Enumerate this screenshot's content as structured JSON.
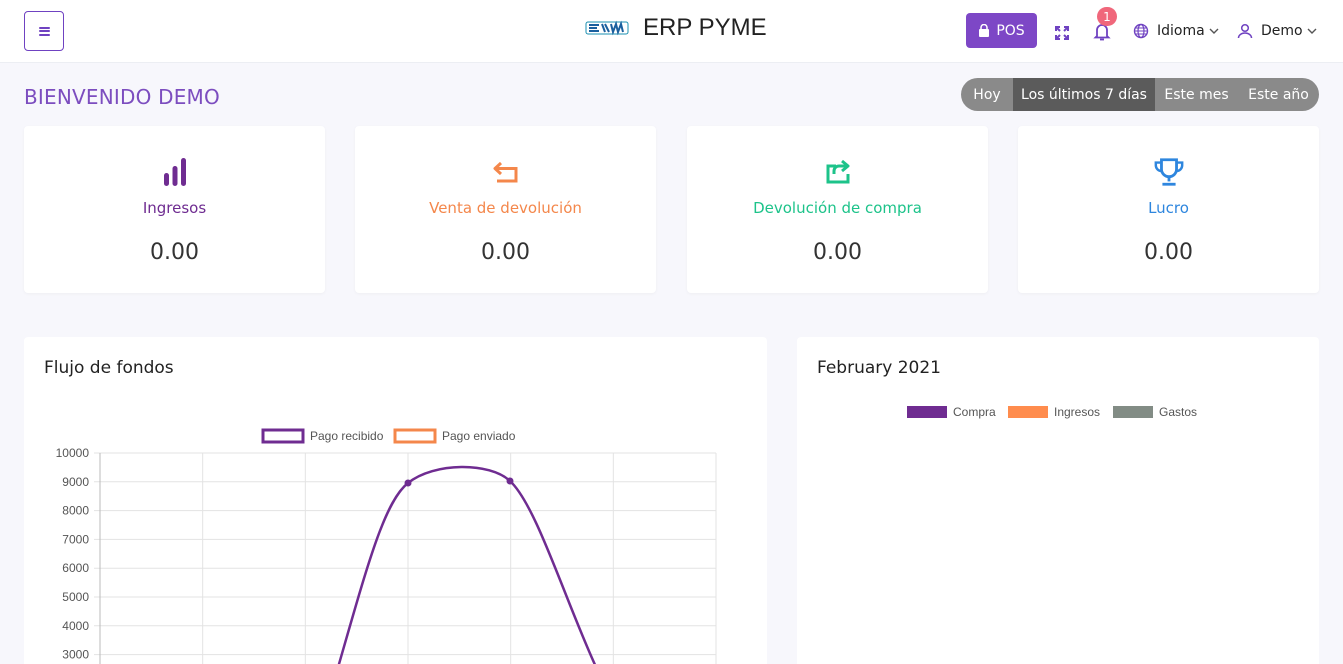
{
  "header": {
    "brand_title": "ERP PYME",
    "pos_label": "POS",
    "notification_count": "1",
    "language_label": "Idioma",
    "user_label": "Demo"
  },
  "welcome": "BIENVENIDO DEMO",
  "filters": [
    "Hoy",
    "Los últimos 7 días",
    "Este mes",
    "Este año"
  ],
  "active_filter": "Los últimos 7 días",
  "cards": [
    {
      "label": "Ingresos",
      "value": "0.00",
      "color": "#6f2c91",
      "icon": "bar-chart-icon"
    },
    {
      "label": "Venta de devolución",
      "value": "0.00",
      "color": "#f4874b",
      "icon": "return-arrow-icon"
    },
    {
      "label": "Devolución de compra",
      "value": "0.00",
      "color": "#1dc38a",
      "icon": "share-box-icon"
    },
    {
      "label": "Lucro",
      "value": "0.00",
      "color": "#2e86de",
      "icon": "trophy-icon"
    }
  ],
  "cashflow": {
    "title": "Flujo de fondos",
    "chart_data": {
      "type": "line",
      "legend": [
        "Pago recibido",
        "Pago enviado"
      ],
      "legend_placement": "top",
      "grid": true,
      "yticks": [
        10000,
        9000,
        8000,
        7000,
        6000,
        5000,
        4000,
        3000
      ],
      "series": [
        {
          "name": "Pago recibido",
          "color": "#6f2c91",
          "visible_points": [
            9000,
            9050
          ]
        },
        {
          "name": "Pago enviado",
          "color": "#f4874b",
          "visible_points": []
        }
      ]
    }
  },
  "month": {
    "title": "February 2021",
    "chart_data": {
      "type": "bar",
      "legend": [
        {
          "name": "Compra",
          "color": "#6f2c91"
        },
        {
          "name": "Ingresos",
          "color": "#ff8c4d"
        },
        {
          "name": "Gastos",
          "color": "#828c85"
        }
      ],
      "legend_placement": "top"
    }
  }
}
